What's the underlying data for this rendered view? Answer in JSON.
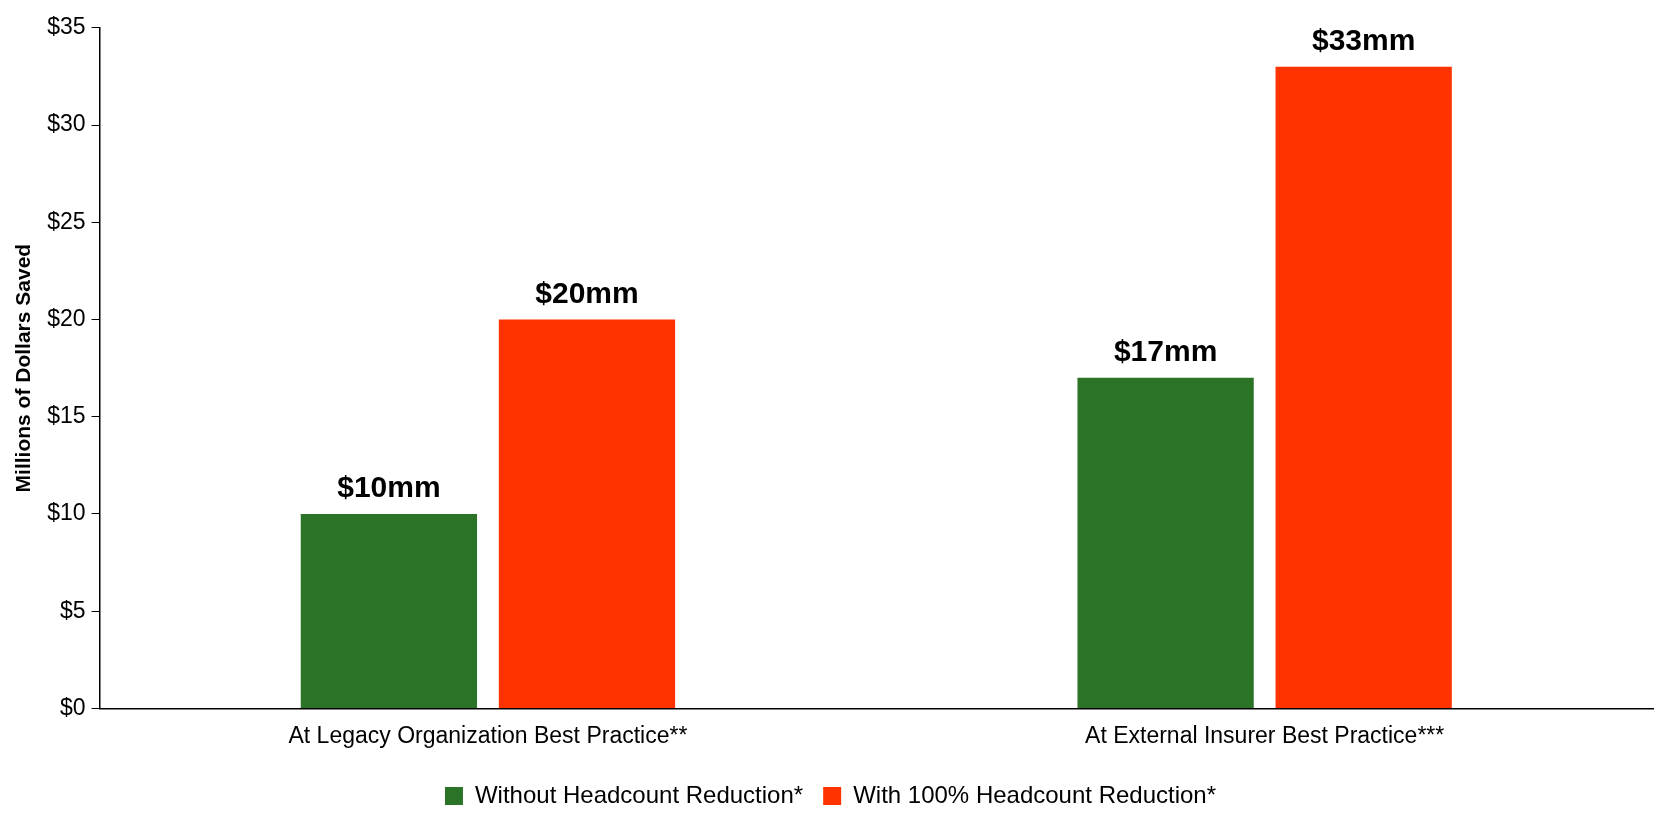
{
  "chart_data": {
    "type": "bar",
    "ylabel": "Millions of Dollars Saved",
    "categories": [
      "At Legacy Organization Best Practice**",
      "At External Insurer Best Practice***"
    ],
    "series": [
      {
        "name": "Without Headcount Reduction*",
        "color": "#2a7327",
        "values": [
          10,
          17
        ],
        "value_labels": [
          "$10mm",
          "$17mm"
        ]
      },
      {
        "name": "With 100% Headcount Reduction*",
        "color": "#ff3300",
        "values": [
          20,
          33
        ],
        "value_labels": [
          "$20mm",
          "$33mm"
        ]
      }
    ],
    "ylim": [
      0,
      35
    ],
    "yticks": [
      {
        "value": 0,
        "label": "$0"
      },
      {
        "value": 5,
        "label": "$5"
      },
      {
        "value": 10,
        "label": "$10"
      },
      {
        "value": 15,
        "label": "$15"
      },
      {
        "value": 20,
        "label": "$20"
      },
      {
        "value": 25,
        "label": "$25"
      },
      {
        "value": 30,
        "label": "$30"
      },
      {
        "value": 35,
        "label": "$35"
      }
    ],
    "grid": false,
    "legend": "bottom"
  }
}
